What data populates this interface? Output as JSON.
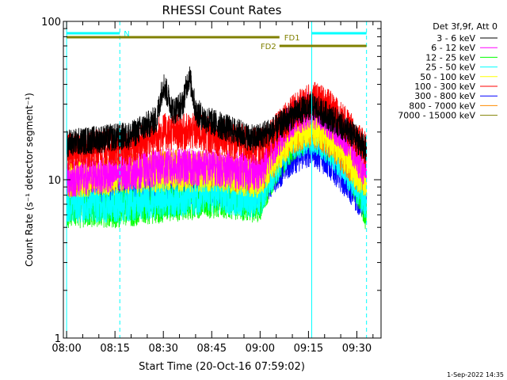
{
  "chart_data": {
    "type": "line",
    "title": "RHESSI Count Rates",
    "xlabel": "Start Time (20-Oct-16 07:59:02)",
    "ylabel": "Count Rate (s⁻¹ detector segment⁻¹)",
    "y_scale": "log",
    "ylim": [
      1,
      100
    ],
    "y_ticks": [
      "1",
      "10",
      "100"
    ],
    "x_ticks": [
      "08:00",
      "08:15",
      "08:30",
      "08:45",
      "09:00",
      "09:15",
      "09:30"
    ],
    "grid": false,
    "legend_title": "Det 3f,9f, Att 0",
    "legend_position": "top-right",
    "series": [
      {
        "name": "3 - 6 keV",
        "color": "#000000",
        "x": [
          "08:00",
          "08:10",
          "08:20",
          "08:28",
          "08:30",
          "08:33",
          "08:36",
          "08:38",
          "08:40",
          "08:43",
          "08:50",
          "08:58",
          "09:05",
          "09:12",
          "09:16",
          "09:20",
          "09:25",
          "09:30",
          "09:33"
        ],
        "values": [
          17,
          18,
          19,
          24,
          40,
          27,
          30,
          45,
          27,
          24,
          21,
          18,
          21,
          27,
          29,
          26,
          22,
          18,
          15
        ]
      },
      {
        "name": "6 - 12 keV",
        "color": "#ff00ff",
        "x": [
          "08:00",
          "08:15",
          "08:30",
          "08:45",
          "09:00",
          "09:05",
          "09:10",
          "09:16",
          "09:20",
          "09:25",
          "09:30",
          "09:33"
        ],
        "values": [
          10,
          11,
          12,
          12,
          11,
          17,
          24,
          28,
          25,
          20,
          14,
          11
        ]
      },
      {
        "name": "12 - 25 keV",
        "color": "#00ff00",
        "x": [
          "08:00",
          "08:15",
          "08:30",
          "08:45",
          "09:00",
          "09:05",
          "09:10",
          "09:16",
          "09:20",
          "09:25",
          "09:30",
          "09:33"
        ],
        "values": [
          6.5,
          6.5,
          7,
          7.5,
          7,
          12,
          17,
          20,
          18,
          14,
          9,
          6
        ]
      },
      {
        "name": "25 - 50 keV",
        "color": "#00ffff",
        "x": [
          "08:00",
          "08:15",
          "08:30",
          "08:45",
          "09:00",
          "09:05",
          "09:10",
          "09:16",
          "09:20",
          "09:25",
          "09:30",
          "09:33"
        ],
        "values": [
          7,
          7,
          7.5,
          8,
          7.5,
          12,
          17,
          19,
          17,
          13,
          9,
          7
        ]
      },
      {
        "name": "50 - 100 keV",
        "color": "#ffff00",
        "x": [
          "08:00",
          "08:15",
          "08:30",
          "08:45",
          "09:00",
          "09:05",
          "09:10",
          "09:16",
          "09:20",
          "09:25",
          "09:30",
          "09:33"
        ],
        "values": [
          10,
          10.5,
          11,
          11,
          10,
          14,
          19,
          22,
          20,
          16,
          11,
          10
        ]
      },
      {
        "name": "100 - 300 keV",
        "color": "#ff0000",
        "x": [
          "08:00",
          "08:10",
          "08:20",
          "08:30",
          "08:40",
          "08:45",
          "08:50",
          "09:00",
          "09:05",
          "09:10",
          "09:16",
          "09:20",
          "09:25",
          "09:30",
          "09:33"
        ],
        "values": [
          15,
          16,
          16,
          20,
          20,
          19,
          18,
          16,
          20,
          26,
          32,
          30,
          24,
          18,
          15
        ]
      },
      {
        "name": "300 - 800 keV",
        "color": "#0000ff",
        "x": [
          "08:00",
          "08:15",
          "08:30",
          "08:45",
          "09:00",
          "09:05",
          "09:10",
          "09:16",
          "09:20",
          "09:25",
          "09:30",
          "09:33"
        ],
        "values": [
          8,
          8.5,
          9,
          9,
          8.5,
          11,
          14,
          16,
          14,
          11,
          8,
          7
        ]
      },
      {
        "name": "800 - 7000 keV",
        "color": "#ff8c00",
        "x": [
          "08:00",
          "08:15",
          "08:30",
          "08:45",
          "09:00",
          "09:05",
          "09:10",
          "09:16",
          "09:20",
          "09:25",
          "09:30",
          "09:33"
        ],
        "values": [
          10,
          11,
          12,
          11.5,
          10.5,
          14,
          19,
          21,
          19,
          15,
          11,
          10
        ]
      },
      {
        "name": "7000 - 15000 keV",
        "color": "#808000",
        "x": [],
        "values": []
      }
    ],
    "annotations": [
      {
        "label": "N",
        "color": "#00ffff",
        "bars": [
          [
            "08:00",
            "08:16.5"
          ],
          [
            "09:16",
            "09:33"
          ]
        ]
      },
      {
        "label": "FD1",
        "color": "#808000",
        "bars": [
          [
            "08:00",
            "09:06"
          ]
        ]
      },
      {
        "label": "FD2",
        "color": "#808000",
        "bars": [
          [
            "09:06",
            "09:33"
          ]
        ]
      }
    ],
    "vertical_lines": [
      {
        "x": "08:00",
        "style": "solid",
        "color": "#00ffff"
      },
      {
        "x": "08:16.5",
        "style": "dashed",
        "color": "#00ffff"
      },
      {
        "x": "09:16",
        "style": "solid",
        "color": "#00ffff"
      },
      {
        "x": "09:33",
        "style": "dashed",
        "color": "#00ffff"
      }
    ]
  },
  "footer": {
    "timestamp": "1-Sep-2022 14:35"
  }
}
